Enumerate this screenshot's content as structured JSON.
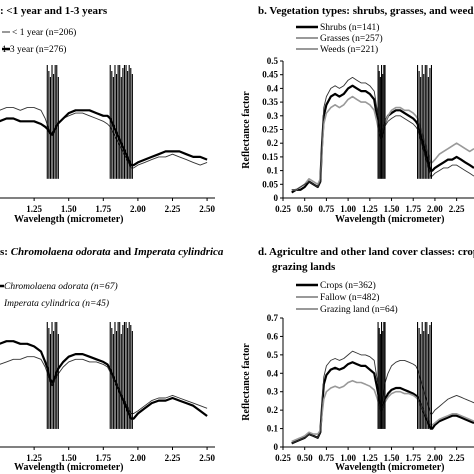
{
  "chart_data": [
    {
      "id": "a",
      "type": "line",
      "title": ": <1 year and 1-3 years",
      "xlabel": "Wavelength (micrometer)",
      "ylabel": "",
      "xticks": [
        "1.25",
        "1.50",
        "1.75",
        "2.00",
        "2.25",
        "2.50"
      ],
      "yticks": [],
      "xlim": [
        0.96,
        2.55
      ],
      "ylim": [
        0,
        0.5
      ],
      "legend_position": "top-left",
      "series": [
        {
          "name": "< 1 year (n=206)",
          "style": "thin",
          "color": "#333333",
          "x": [
            0.96,
            1.0,
            1.05,
            1.1,
            1.15,
            1.2,
            1.25,
            1.3,
            1.33,
            1.35,
            1.36,
            1.38,
            1.42,
            1.46,
            1.5,
            1.55,
            1.6,
            1.65,
            1.7,
            1.75,
            1.78,
            1.8,
            1.95,
            1.97,
            2.0,
            2.05,
            2.1,
            2.15,
            2.2,
            2.25,
            2.3,
            2.35,
            2.4,
            2.45,
            2.5
          ],
          "y": [
            0.3,
            0.32,
            0.33,
            0.33,
            0.32,
            0.33,
            0.33,
            0.32,
            0.29,
            0.26,
            0.25,
            0.23,
            0.27,
            0.29,
            0.3,
            0.31,
            0.31,
            0.3,
            0.29,
            0.28,
            0.27,
            0.26,
            0.11,
            0.11,
            0.12,
            0.13,
            0.14,
            0.15,
            0.15,
            0.16,
            0.15,
            0.14,
            0.13,
            0.12,
            0.13
          ]
        },
        {
          "name": "1-3 year (n=276)",
          "style": "thick",
          "color": "#000000",
          "x": [
            0.96,
            1.0,
            1.05,
            1.1,
            1.15,
            1.2,
            1.25,
            1.3,
            1.33,
            1.35,
            1.36,
            1.38,
            1.42,
            1.46,
            1.5,
            1.55,
            1.6,
            1.65,
            1.7,
            1.75,
            1.78,
            1.8,
            1.95,
            1.97,
            2.0,
            2.05,
            2.1,
            2.15,
            2.2,
            2.25,
            2.3,
            2.35,
            2.4,
            2.45,
            2.5
          ],
          "y": [
            0.26,
            0.28,
            0.29,
            0.29,
            0.28,
            0.28,
            0.28,
            0.27,
            0.26,
            0.25,
            0.24,
            0.23,
            0.27,
            0.29,
            0.31,
            0.32,
            0.32,
            0.32,
            0.31,
            0.3,
            0.3,
            0.29,
            0.12,
            0.12,
            0.13,
            0.14,
            0.15,
            0.16,
            0.17,
            0.17,
            0.17,
            0.16,
            0.15,
            0.15,
            0.14
          ]
        }
      ]
    },
    {
      "id": "b",
      "type": "line",
      "title": "b.  Vegetation  types: shrubs, grasses, and weed",
      "xlabel": "Wavelength (micrometer)",
      "ylabel": "Reflectance factor",
      "xticks": [
        "0.25",
        "0.50",
        "0.75",
        "1.00",
        "1.25",
        "1.50",
        "1.75",
        "2.00",
        "2.25"
      ],
      "yticks": [
        "0",
        "0.05",
        "0.1",
        "0.15",
        "0.2",
        "0.25",
        "0.3",
        "0.35",
        "0.4",
        "0.45",
        "0.5"
      ],
      "xlim": [
        0.25,
        2.45
      ],
      "ylim": [
        0,
        0.5
      ],
      "legend_position": "top-left",
      "series": [
        {
          "name": "Shrubs (n=141)",
          "style": "thick",
          "color": "#000000",
          "x": [
            0.35,
            0.4,
            0.45,
            0.5,
            0.55,
            0.6,
            0.65,
            0.68,
            0.7,
            0.72,
            0.75,
            0.8,
            0.85,
            0.9,
            0.95,
            1.0,
            1.05,
            1.1,
            1.15,
            1.2,
            1.25,
            1.3,
            1.33,
            1.35,
            1.38,
            1.42,
            1.46,
            1.5,
            1.55,
            1.6,
            1.65,
            1.7,
            1.75,
            1.78,
            1.8,
            1.95,
            1.97,
            2.0,
            2.05,
            2.1,
            2.15,
            2.2,
            2.25,
            2.3,
            2.35,
            2.4,
            2.45
          ],
          "y": [
            0.02,
            0.03,
            0.03,
            0.04,
            0.06,
            0.05,
            0.04,
            0.06,
            0.2,
            0.3,
            0.34,
            0.37,
            0.38,
            0.37,
            0.38,
            0.4,
            0.41,
            0.4,
            0.39,
            0.39,
            0.38,
            0.36,
            0.3,
            0.27,
            0.22,
            0.27,
            0.3,
            0.31,
            0.32,
            0.32,
            0.31,
            0.3,
            0.29,
            0.28,
            0.27,
            0.1,
            0.1,
            0.11,
            0.12,
            0.13,
            0.14,
            0.14,
            0.15,
            0.14,
            0.13,
            0.12,
            0.11
          ]
        },
        {
          "name": "Grasses (n=257)",
          "style": "gray",
          "color": "#999999",
          "x": [
            0.35,
            0.4,
            0.45,
            0.5,
            0.55,
            0.6,
            0.65,
            0.68,
            0.7,
            0.72,
            0.75,
            0.8,
            0.85,
            0.9,
            0.95,
            1.0,
            1.05,
            1.1,
            1.15,
            1.2,
            1.25,
            1.3,
            1.33,
            1.35,
            1.38,
            1.42,
            1.46,
            1.5,
            1.55,
            1.6,
            1.65,
            1.7,
            1.75,
            1.78,
            1.8,
            1.95,
            1.97,
            2.0,
            2.05,
            2.1,
            2.15,
            2.2,
            2.25,
            2.3,
            2.35,
            2.4,
            2.45
          ],
          "y": [
            0.03,
            0.03,
            0.04,
            0.05,
            0.07,
            0.06,
            0.05,
            0.07,
            0.18,
            0.27,
            0.31,
            0.33,
            0.34,
            0.33,
            0.34,
            0.36,
            0.37,
            0.36,
            0.35,
            0.35,
            0.34,
            0.32,
            0.28,
            0.25,
            0.23,
            0.27,
            0.3,
            0.32,
            0.33,
            0.33,
            0.32,
            0.32,
            0.31,
            0.3,
            0.29,
            0.13,
            0.13,
            0.14,
            0.16,
            0.17,
            0.18,
            0.19,
            0.2,
            0.19,
            0.18,
            0.17,
            0.18
          ]
        },
        {
          "name": "Weeds (n=221)",
          "style": "thin",
          "color": "#333333",
          "x": [
            0.35,
            0.4,
            0.45,
            0.5,
            0.55,
            0.6,
            0.65,
            0.68,
            0.7,
            0.72,
            0.75,
            0.8,
            0.85,
            0.9,
            0.95,
            1.0,
            1.05,
            1.1,
            1.15,
            1.2,
            1.25,
            1.3,
            1.33,
            1.35,
            1.38,
            1.42,
            1.46,
            1.5,
            1.55,
            1.6,
            1.65,
            1.7,
            1.75,
            1.78,
            1.8,
            1.95,
            1.97,
            2.0,
            2.05,
            2.1,
            2.15,
            2.2,
            2.25,
            2.3,
            2.35,
            2.4,
            2.45
          ],
          "y": [
            0.03,
            0.03,
            0.04,
            0.05,
            0.06,
            0.05,
            0.04,
            0.06,
            0.22,
            0.33,
            0.37,
            0.4,
            0.41,
            0.4,
            0.41,
            0.43,
            0.44,
            0.43,
            0.42,
            0.42,
            0.41,
            0.39,
            0.33,
            0.29,
            0.22,
            0.26,
            0.28,
            0.29,
            0.3,
            0.3,
            0.29,
            0.28,
            0.27,
            0.26,
            0.25,
            0.08,
            0.08,
            0.09,
            0.1,
            0.11,
            0.11,
            0.12,
            0.12,
            0.11,
            0.1,
            0.09,
            0.08
          ]
        }
      ]
    },
    {
      "id": "c",
      "type": "line",
      "title": "s: Chromolaena odorata and Imperata cylindrica",
      "xlabel": "Wavelength (micrometer)",
      "ylabel": "",
      "xticks": [
        "1.25",
        "1.50",
        "1.75",
        "2.00",
        "2.25",
        "2.50"
      ],
      "yticks": [],
      "xlim": [
        0.96,
        2.55
      ],
      "ylim": [
        0,
        0.5
      ],
      "legend_position": "top-left",
      "series": [
        {
          "name": "Chromolaena odorata (n=67)",
          "style": "thick",
          "color": "#000000",
          "x": [
            0.96,
            1.0,
            1.05,
            1.1,
            1.15,
            1.2,
            1.25,
            1.3,
            1.33,
            1.35,
            1.36,
            1.38,
            1.42,
            1.46,
            1.5,
            1.55,
            1.6,
            1.65,
            1.7,
            1.75,
            1.78,
            1.8,
            1.95,
            1.97,
            2.0,
            2.05,
            2.1,
            2.15,
            2.2,
            2.25,
            2.3,
            2.35,
            2.4,
            2.45,
            2.5
          ],
          "y": [
            0.38,
            0.4,
            0.41,
            0.41,
            0.4,
            0.4,
            0.39,
            0.37,
            0.33,
            0.3,
            0.27,
            0.24,
            0.3,
            0.33,
            0.35,
            0.36,
            0.36,
            0.35,
            0.34,
            0.33,
            0.32,
            0.3,
            0.11,
            0.11,
            0.13,
            0.15,
            0.17,
            0.18,
            0.18,
            0.19,
            0.18,
            0.17,
            0.16,
            0.14,
            0.12
          ]
        },
        {
          "name": "Imperata cylindrica (n=45)",
          "style": "thin",
          "color": "#333333",
          "x": [
            0.96,
            1.0,
            1.05,
            1.1,
            1.15,
            1.2,
            1.25,
            1.3,
            1.33,
            1.35,
            1.36,
            1.38,
            1.42,
            1.46,
            1.5,
            1.55,
            1.6,
            1.65,
            1.7,
            1.75,
            1.78,
            1.8,
            1.95,
            1.97,
            2.0,
            2.05,
            2.1,
            2.15,
            2.2,
            2.25,
            2.3,
            2.35,
            2.4,
            2.45,
            2.5
          ],
          "y": [
            0.3,
            0.32,
            0.33,
            0.34,
            0.34,
            0.35,
            0.35,
            0.34,
            0.31,
            0.28,
            0.26,
            0.24,
            0.28,
            0.31,
            0.33,
            0.34,
            0.34,
            0.33,
            0.33,
            0.32,
            0.31,
            0.29,
            0.13,
            0.13,
            0.14,
            0.16,
            0.18,
            0.19,
            0.19,
            0.2,
            0.19,
            0.18,
            0.17,
            0.16,
            0.15
          ]
        }
      ]
    },
    {
      "id": "d",
      "type": "line",
      "title": "d.  Agricultre and other land cover classes: crop",
      "title_line2": "grazing lands",
      "xlabel": "Wavelength (micrometer)",
      "ylabel": "Reflectance factor",
      "xticks": [
        "0.25",
        "0.50",
        "0.75",
        "1.00",
        "1.25",
        "1.50",
        "1.75",
        "2.00",
        "2.25"
      ],
      "yticks": [
        "0",
        "0.1",
        "0.2",
        "0.3",
        "0.4",
        "0.5",
        "0.6",
        "0.7"
      ],
      "xlim": [
        0.25,
        2.45
      ],
      "ylim": [
        0,
        0.7
      ],
      "legend_position": "top-left",
      "series": [
        {
          "name": "Crops (n=362)",
          "style": "thick",
          "color": "#000000",
          "x": [
            0.35,
            0.4,
            0.45,
            0.5,
            0.55,
            0.6,
            0.65,
            0.68,
            0.7,
            0.72,
            0.75,
            0.8,
            0.85,
            0.9,
            0.95,
            1.0,
            1.05,
            1.1,
            1.15,
            1.2,
            1.25,
            1.3,
            1.33,
            1.35,
            1.38,
            1.42,
            1.46,
            1.5,
            1.55,
            1.6,
            1.65,
            1.7,
            1.75,
            1.78,
            1.8,
            1.95,
            1.97,
            2.0,
            2.05,
            2.1,
            2.15,
            2.2,
            2.25,
            2.3,
            2.35,
            2.4,
            2.45
          ],
          "y": [
            0.02,
            0.03,
            0.04,
            0.05,
            0.07,
            0.06,
            0.05,
            0.08,
            0.22,
            0.34,
            0.39,
            0.42,
            0.43,
            0.42,
            0.43,
            0.45,
            0.46,
            0.45,
            0.44,
            0.44,
            0.42,
            0.4,
            0.33,
            0.28,
            0.2,
            0.25,
            0.29,
            0.31,
            0.32,
            0.32,
            0.31,
            0.3,
            0.29,
            0.28,
            0.27,
            0.1,
            0.1,
            0.12,
            0.14,
            0.15,
            0.16,
            0.17,
            0.17,
            0.16,
            0.15,
            0.14,
            0.13
          ]
        },
        {
          "name": "Fallow (n=482)",
          "style": "gray",
          "color": "#999999",
          "x": [
            0.35,
            0.4,
            0.45,
            0.5,
            0.55,
            0.6,
            0.65,
            0.68,
            0.7,
            0.72,
            0.75,
            0.8,
            0.85,
            0.9,
            0.95,
            1.0,
            1.05,
            1.1,
            1.15,
            1.2,
            1.25,
            1.3,
            1.33,
            1.35,
            1.38,
            1.42,
            1.46,
            1.5,
            1.55,
            1.6,
            1.65,
            1.7,
            1.75,
            1.78,
            1.8,
            1.95,
            1.97,
            2.0,
            2.05,
            2.1,
            2.15,
            2.2,
            2.25,
            2.3,
            2.35,
            2.4,
            2.45
          ],
          "y": [
            0.03,
            0.04,
            0.05,
            0.06,
            0.08,
            0.07,
            0.07,
            0.09,
            0.18,
            0.26,
            0.3,
            0.32,
            0.33,
            0.32,
            0.33,
            0.35,
            0.36,
            0.35,
            0.35,
            0.34,
            0.33,
            0.31,
            0.27,
            0.24,
            0.2,
            0.24,
            0.27,
            0.29,
            0.3,
            0.3,
            0.29,
            0.29,
            0.28,
            0.27,
            0.26,
            0.12,
            0.12,
            0.13,
            0.15,
            0.16,
            0.17,
            0.18,
            0.18,
            0.17,
            0.16,
            0.15,
            0.14
          ]
        },
        {
          "name": "Grazing land (n=64)",
          "style": "thin",
          "color": "#333333",
          "x": [
            0.35,
            0.4,
            0.45,
            0.5,
            0.55,
            0.6,
            0.65,
            0.68,
            0.7,
            0.72,
            0.75,
            0.8,
            0.85,
            0.9,
            0.95,
            1.0,
            1.05,
            1.1,
            1.15,
            1.2,
            1.25,
            1.3,
            1.33,
            1.35,
            1.38,
            1.42,
            1.46,
            1.5,
            1.55,
            1.6,
            1.65,
            1.7,
            1.75,
            1.78,
            1.8,
            1.95,
            1.97,
            2.0,
            2.05,
            2.1,
            2.15,
            2.2,
            2.25,
            2.3,
            2.35,
            2.4,
            2.45
          ],
          "y": [
            0.02,
            0.03,
            0.04,
            0.05,
            0.07,
            0.06,
            0.05,
            0.08,
            0.25,
            0.38,
            0.44,
            0.47,
            0.48,
            0.47,
            0.48,
            0.5,
            0.52,
            0.51,
            0.5,
            0.5,
            0.49,
            0.47,
            0.38,
            0.32,
            0.22,
            0.34,
            0.4,
            0.44,
            0.46,
            0.47,
            0.47,
            0.46,
            0.45,
            0.44,
            0.42,
            0.18,
            0.18,
            0.2,
            0.22,
            0.24,
            0.26,
            0.27,
            0.28,
            0.27,
            0.26,
            0.25,
            0.24
          ]
        }
      ]
    }
  ],
  "panel_c_title": {
    "pre": "s: ",
    "sp1": "Chromolaena odorata",
    "mid": " and ",
    "sp2": "Imperata cylindrica"
  }
}
